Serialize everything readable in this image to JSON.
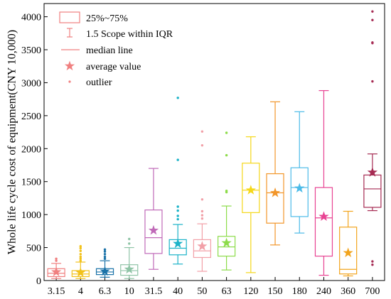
{
  "chart_data": {
    "type": "box",
    "title": "",
    "xlabel": "",
    "ylabel": "Whole life cycle cost of equipment(CNY 10,000)",
    "ylim": [
      0,
      4200
    ],
    "yticks": [
      0,
      500,
      1000,
      1500,
      2000,
      2500,
      3000,
      3500,
      4000
    ],
    "grid": false,
    "legend_position": "top-left",
    "legend": [
      {
        "key": "box",
        "label": "25%~75%"
      },
      {
        "key": "whisker",
        "label": "1.5 Scope within IQR"
      },
      {
        "key": "median",
        "label": "median line"
      },
      {
        "key": "mean",
        "label": "average value"
      },
      {
        "key": "outlier",
        "label": "outlier"
      }
    ],
    "categories": [
      "3.15",
      "4",
      "6.3",
      "10",
      "31.5",
      "40",
      "50",
      "63",
      "120",
      "150",
      "180",
      "240",
      "360",
      "700"
    ],
    "boxes": [
      {
        "category": "3.15",
        "color": "#f08080",
        "lower_whisker": 30,
        "q1": 60,
        "median": 110,
        "q3": 180,
        "upper_whisker": 260,
        "mean": 130,
        "outliers": [
          300,
          330
        ]
      },
      {
        "category": "4",
        "color": "#f2c21b",
        "lower_whisker": 30,
        "q1": 60,
        "median": 100,
        "q3": 150,
        "upper_whisker": 280,
        "mean": 120,
        "outliers": [
          300,
          330,
          360,
          400,
          450,
          490,
          520
        ]
      },
      {
        "category": "6.3",
        "color": "#1a72a8",
        "lower_whisker": 50,
        "q1": 90,
        "median": 130,
        "q3": 180,
        "upper_whisker": 300,
        "mean": 140,
        "outliers": [
          330,
          360,
          400,
          440,
          470
        ]
      },
      {
        "category": "10",
        "color": "#8fc4a6",
        "lower_whisker": 30,
        "q1": 80,
        "median": 150,
        "q3": 240,
        "upper_whisker": 500,
        "mean": 170,
        "outliers": [
          560,
          630
        ]
      },
      {
        "category": "31.5",
        "color": "#c06ab8",
        "lower_whisker": 170,
        "q1": 410,
        "median": 650,
        "q3": 1070,
        "upper_whisker": 1700,
        "mean": 760,
        "outliers": []
      },
      {
        "category": "40",
        "color": "#1cb3c8",
        "lower_whisker": 250,
        "q1": 390,
        "median": 490,
        "q3": 620,
        "upper_whisker": 850,
        "mean": 560,
        "outliers": [
          930,
          980,
          1060,
          1120,
          1830,
          2770
        ]
      },
      {
        "category": "50",
        "color": "#f2a0a8",
        "lower_whisker": 140,
        "q1": 350,
        "median": 450,
        "q3": 620,
        "upper_whisker": 860,
        "mean": 520,
        "outliers": [
          940,
          990,
          1050,
          1230,
          2050,
          2260
        ]
      },
      {
        "category": "63",
        "color": "#8ddc4a",
        "lower_whisker": 160,
        "q1": 370,
        "median": 510,
        "q3": 670,
        "upper_whisker": 1130,
        "mean": 570,
        "outliers": [
          1340,
          1360,
          1900,
          2240
        ]
      },
      {
        "category": "120",
        "color": "#f5d81a",
        "lower_whisker": 120,
        "q1": 1030,
        "median": 1370,
        "q3": 1780,
        "upper_whisker": 2180,
        "mean": 1370,
        "outliers": []
      },
      {
        "category": "150",
        "color": "#f2962a",
        "lower_whisker": 540,
        "q1": 870,
        "median": 1330,
        "q3": 1620,
        "upper_whisker": 2710,
        "mean": 1330,
        "outliers": []
      },
      {
        "category": "180",
        "color": "#4cbbe8",
        "lower_whisker": 720,
        "q1": 970,
        "median": 1410,
        "q3": 1710,
        "upper_whisker": 2560,
        "mean": 1400,
        "outliers": []
      },
      {
        "category": "240",
        "color": "#e84393",
        "lower_whisker": 80,
        "q1": 370,
        "median": 950,
        "q3": 1410,
        "upper_whisker": 2880,
        "mean": 970,
        "outliers": []
      },
      {
        "category": "360",
        "color": "#f2a41d",
        "lower_whisker": 70,
        "q1": 100,
        "median": 170,
        "q3": 810,
        "upper_whisker": 1050,
        "mean": 420,
        "outliers": []
      },
      {
        "category": "700",
        "color": "#a62b53",
        "lower_whisker": 1060,
        "q1": 1110,
        "median": 1390,
        "q3": 1600,
        "upper_whisker": 1920,
        "mean": 1640,
        "outliers": [
          240,
          290,
          3020,
          3600,
          3610,
          3950,
          4080
        ]
      }
    ]
  }
}
